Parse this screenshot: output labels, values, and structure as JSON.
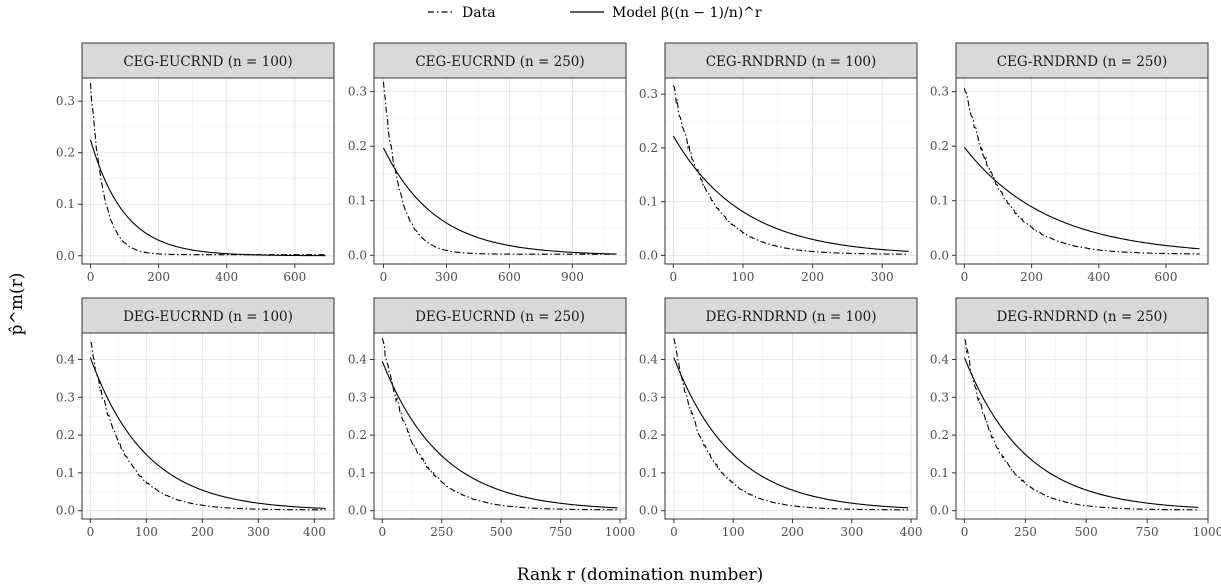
{
  "legend": {
    "entries": [
      {
        "label": "Data",
        "linetype": "dashdot"
      },
      {
        "label": "Model β((n − 1)/n)^r",
        "linetype": "solid"
      }
    ],
    "placement": "top"
  },
  "axes": {
    "xlabel": "Rank r (domination number)",
    "ylabel": "p̂^m(r)"
  },
  "chart_data": [
    {
      "type": "line",
      "title": "CEG-EUCRND (n = 100)",
      "n": 100,
      "beta": 0.225,
      "y0": 0.33,
      "rmax": 690,
      "decay": 0.0265,
      "xlim": [
        -25,
        715
      ],
      "ylim": [
        -0.016,
        0.345
      ],
      "xticks": [
        0,
        200,
        400,
        600
      ],
      "yticks": [
        0.0,
        0.1,
        0.2,
        0.3
      ],
      "ytick_labels": [
        "0.0",
        "0.1",
        "0.2",
        "0.3"
      ]
    },
    {
      "type": "line",
      "title": "CEG-EUCRND (n = 250)",
      "n": 250,
      "beta": 0.197,
      "y0": 0.31,
      "rmax": 1110,
      "decay": 0.0127,
      "xlim": [
        -45,
        1155
      ],
      "ylim": [
        -0.016,
        0.325
      ],
      "xticks": [
        0,
        300,
        600,
        900
      ],
      "yticks": [
        0.0,
        0.1,
        0.2,
        0.3
      ],
      "ytick_labels": [
        "0.0",
        "0.1",
        "0.2",
        "0.3"
      ]
    },
    {
      "type": "line",
      "title": "CEG-RNDRND (n = 100)",
      "n": 100,
      "beta": 0.222,
      "y0": 0.315,
      "rmax": 338,
      "decay": 0.0205,
      "xlim": [
        -12,
        350
      ],
      "ylim": [
        -0.016,
        0.33
      ],
      "xticks": [
        0,
        100,
        200,
        300
      ],
      "yticks": [
        0.0,
        0.1,
        0.2,
        0.3
      ],
      "ytick_labels": [
        "0.0",
        "0.1",
        "0.2",
        "0.3"
      ]
    },
    {
      "type": "line",
      "title": "CEG-RNDRND (n = 250)",
      "n": 250,
      "beta": 0.198,
      "y0": 0.31,
      "rmax": 700,
      "decay": 0.0092,
      "xlim": [
        -25,
        725
      ],
      "ylim": [
        -0.016,
        0.325
      ],
      "xticks": [
        0,
        200,
        400,
        600
      ],
      "yticks": [
        0.0,
        0.1,
        0.2,
        0.3
      ],
      "ytick_labels": [
        "0.0",
        "0.1",
        "0.2",
        "0.3"
      ]
    },
    {
      "type": "line",
      "title": "DEG-EUCRND (n = 100)",
      "n": 100,
      "beta": 0.405,
      "y0": 0.445,
      "rmax": 420,
      "decay": 0.018,
      "xlim": [
        -15,
        435
      ],
      "ylim": [
        -0.022,
        0.47
      ],
      "xticks": [
        0,
        100,
        200,
        300,
        400
      ],
      "yticks": [
        0.0,
        0.1,
        0.2,
        0.3,
        0.4
      ],
      "ytick_labels": [
        "0.0",
        "0.1",
        "0.2",
        "0.3",
        "0.4"
      ]
    },
    {
      "type": "line",
      "title": "DEG-EUCRND (n = 250)",
      "n": 250,
      "beta": 0.395,
      "y0": 0.45,
      "rmax": 990,
      "decay": 0.0072,
      "xlim": [
        -35,
        1025
      ],
      "ylim": [
        -0.022,
        0.47
      ],
      "xticks": [
        0,
        250,
        500,
        750,
        1000
      ],
      "yticks": [
        0.0,
        0.1,
        0.2,
        0.3,
        0.4
      ],
      "ytick_labels": [
        "0.0",
        "0.1",
        "0.2",
        "0.3",
        "0.4"
      ]
    },
    {
      "type": "line",
      "title": "DEG-RNDRND (n = 100)",
      "n": 100,
      "beta": 0.405,
      "y0": 0.445,
      "rmax": 395,
      "decay": 0.0185,
      "xlim": [
        -15,
        410
      ],
      "ylim": [
        -0.022,
        0.47
      ],
      "xticks": [
        0,
        100,
        200,
        300,
        400
      ],
      "yticks": [
        0.0,
        0.1,
        0.2,
        0.3,
        0.4
      ],
      "ytick_labels": [
        "0.0",
        "0.1",
        "0.2",
        "0.3",
        "0.4"
      ]
    },
    {
      "type": "line",
      "title": "DEG-RNDRND (n = 250)",
      "n": 250,
      "beta": 0.405,
      "y0": 0.45,
      "rmax": 960,
      "decay": 0.0074,
      "xlim": [
        -35,
        1000
      ],
      "ylim": [
        -0.022,
        0.47
      ],
      "xticks": [
        0,
        250,
        500,
        750,
        1000
      ],
      "yticks": [
        0.0,
        0.1,
        0.2,
        0.3,
        0.4
      ],
      "ytick_labels": [
        "0.0",
        "0.1",
        "0.2",
        "0.3",
        "0.4"
      ]
    }
  ],
  "colors": {
    "strip_fill": "#d9d9d9",
    "panel_border": "#333333",
    "grid_major": "#e5e5e5",
    "grid_minor": "#f2f2f2",
    "line": "#000000"
  }
}
